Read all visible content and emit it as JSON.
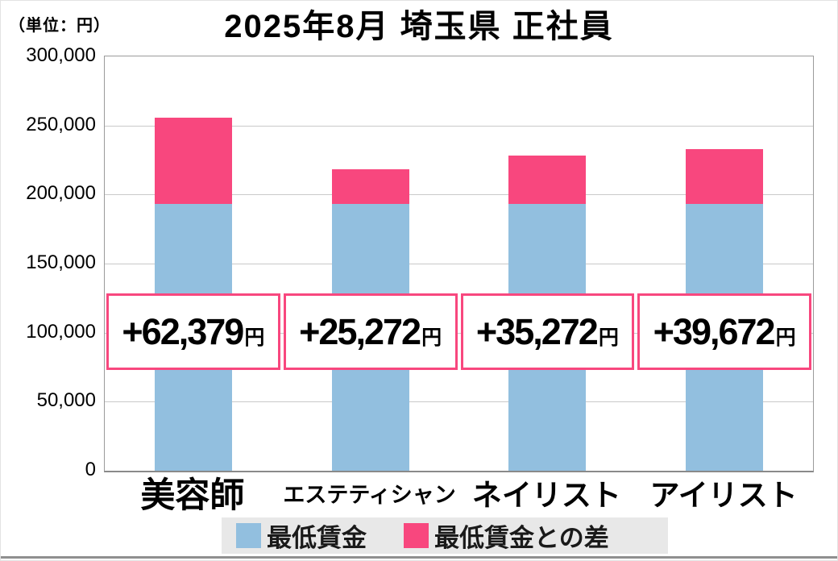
{
  "header": {
    "unit_label": "（単位：円）",
    "title": "2025年8月 埼玉県 正社員"
  },
  "chart_data": {
    "type": "bar",
    "stacked": true,
    "title": "2025年8月 埼玉県 正社員",
    "unit": "円",
    "categories": [
      "美容師",
      "エステティシャン",
      "ネイリスト",
      "アイリスト"
    ],
    "series": [
      {
        "name": "最低賃金",
        "color": "#92bfdf",
        "values": [
          193000,
          193000,
          193000,
          193000
        ]
      },
      {
        "name": "最低賃金との差",
        "color": "#f8477e",
        "values": [
          62379,
          25272,
          35272,
          39672
        ]
      }
    ],
    "bar_totals": [
      255379,
      218272,
      228272,
      232672
    ],
    "callouts": [
      {
        "value": "+62,379",
        "suffix": "円"
      },
      {
        "value": "+25,272",
        "suffix": "円"
      },
      {
        "value": "+35,272",
        "suffix": "円"
      },
      {
        "value": "+39,672",
        "suffix": "円"
      }
    ],
    "ylim": [
      0,
      300000
    ],
    "ytick_interval": 50000,
    "yticks": [
      "300,000",
      "250,000",
      "200,000",
      "150,000",
      "100,000",
      "50,000",
      "0"
    ],
    "grid": true,
    "legend_position": "bottom"
  },
  "legend": {
    "items": [
      {
        "label": "最低賃金",
        "color": "#92bfdf"
      },
      {
        "label": "最低賃金との差",
        "color": "#f8477e"
      }
    ]
  },
  "colors": {
    "bar_blue": "#92bfdf",
    "bar_pink": "#f8477e",
    "callout_border": "#f8477e",
    "legend_bg": "#e8e8e8",
    "gridline": "#c9c9c9",
    "axis": "#9b9b9b",
    "page_bottom_line": "#8f8f8f"
  }
}
